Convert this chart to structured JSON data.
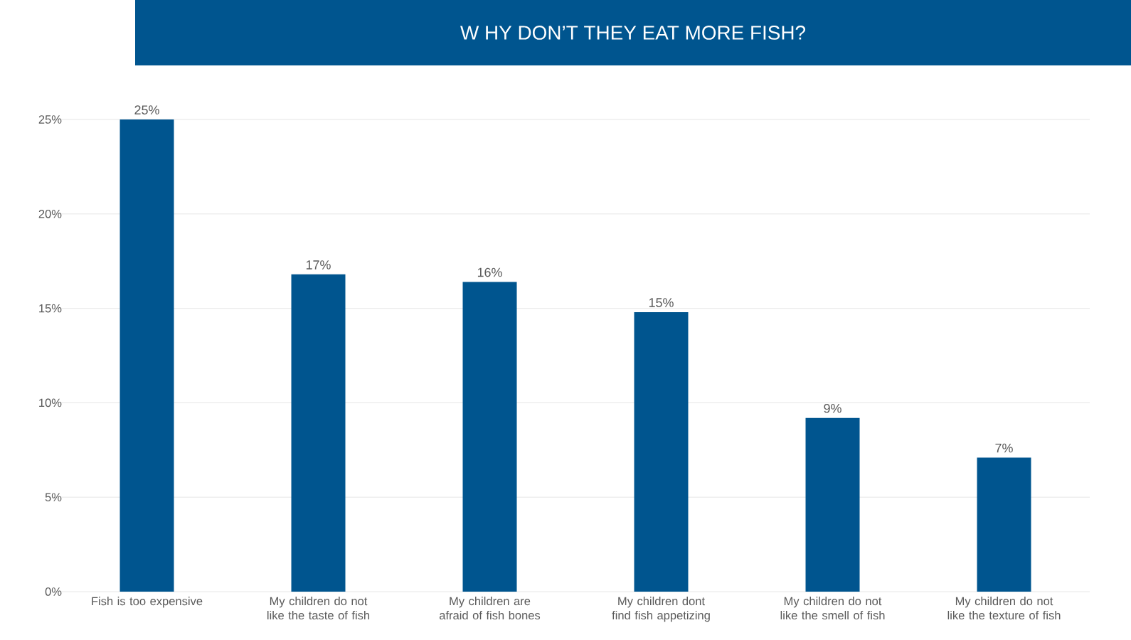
{
  "chart_data": {
    "type": "bar",
    "title": "W HY DON’T THEY EAT MORE FISH?",
    "categories": [
      "Fish is too expensive",
      "My children do not like the taste of fish",
      "My children are afraid of fish bones",
      "My children dont find fish appetizing",
      "My children do not like the smell of fish",
      "My children do not like the texture of fish"
    ],
    "values": [
      25,
      16.8,
      16.4,
      14.8,
      9.2,
      7.1
    ],
    "value_labels": [
      "25%",
      "17%",
      "16%",
      "15%",
      "9%",
      "7%"
    ],
    "color": "#00558f",
    "ylim": [
      0,
      25
    ],
    "yticks": [
      {
        "value": 0,
        "label": "0%"
      },
      {
        "value": 5,
        "label": "5%"
      },
      {
        "value": 10,
        "label": "10%"
      },
      {
        "value": 15,
        "label": "15%"
      },
      {
        "value": 20,
        "label": "20%"
      },
      {
        "value": 25,
        "label": "25%"
      }
    ],
    "grid": "y"
  }
}
